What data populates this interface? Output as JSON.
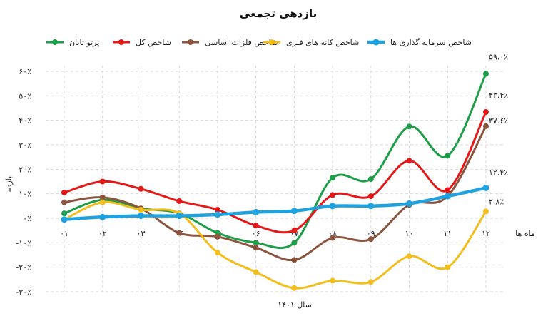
{
  "chart_data": {
    "type": "line",
    "title": "بازدهی تجمعی",
    "xlabel": "سال ۱۴۰۱",
    "ylabel": "بازده",
    "x_axis_name": "ماه ها",
    "categories": [
      "۰۱",
      "۰۲",
      "۰۳",
      "۰۴",
      "۰۵",
      "۰۶",
      "۰۷",
      "۰۸",
      "۰۹",
      "۱۰",
      "۱۱",
      "۱۲"
    ],
    "yticks": [
      "۶۰٪",
      "۵۰٪",
      "۴۰٪",
      "۳۰٪",
      "۲۰٪",
      "۱۰٪",
      "۰٪",
      "-۱۰٪",
      "-۲۰٪",
      "-۳۰٪"
    ],
    "ylim": [
      -30,
      60
    ],
    "grid": true,
    "legend_position": "top",
    "series": [
      {
        "name": "پرتو تابان",
        "color": "#1e9e48",
        "values": [
          2,
          7.5,
          4,
          2,
          -6,
          -10,
          -10,
          16.5,
          16,
          37.5,
          25.5,
          59
        ],
        "end_label": "۵۹.۰٪"
      },
      {
        "name": "شاخص کل",
        "color": "#e31818",
        "values": [
          10.5,
          15,
          12,
          7,
          3.5,
          -3,
          -5,
          9.5,
          9,
          23.5,
          11.5,
          43.4
        ],
        "end_label": "۴۳.۴٪"
      },
      {
        "name": "شاخص فلزات اساسی",
        "color": "#8b5540",
        "values": [
          6.5,
          8.5,
          4,
          -6,
          -7.5,
          -12,
          -17,
          -8,
          -8.5,
          5.5,
          9,
          37.6
        ],
        "end_label": "۳۷.۶٪"
      },
      {
        "name": "شاخص کانه های فلزی",
        "color": "#f2be1e",
        "values": [
          -0.5,
          6.5,
          3.5,
          2,
          -14,
          -22,
          -28.5,
          -25.5,
          -26,
          -15.5,
          -20,
          2.8
        ],
        "end_label": "۲.۸٪"
      },
      {
        "name": "شاخص سرمایه گذاری ها",
        "color": "#1fa2dd",
        "values": [
          -0.5,
          0.5,
          1,
          1,
          1.5,
          2.5,
          3,
          5,
          5,
          6,
          9,
          12.4
        ],
        "end_label": "۱۲.۴٪"
      }
    ]
  }
}
